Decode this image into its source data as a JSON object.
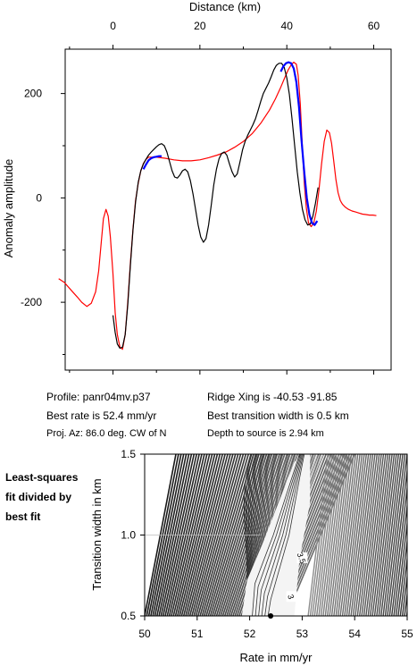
{
  "chart_data": [
    {
      "type": "line",
      "xlabel": "Distance (km)",
      "ylabel": "Anomaly amplitude",
      "xlim": [
        -11,
        64
      ],
      "ylim": [
        -330,
        285
      ],
      "x_ticks": [
        0,
        20,
        40,
        60
      ],
      "y_ticks": [
        -200,
        0,
        200
      ],
      "x_tick_labels": [
        "0",
        "20",
        "40",
        "60"
      ],
      "y_tick_labels": [
        "-200",
        "0",
        "200"
      ],
      "grid": false,
      "series": [
        {
          "color": "#ff0000",
          "x": [
            -12.5,
            -11.2,
            -9.5,
            -8.2,
            -7.2,
            -6,
            -5,
            -4,
            -3.3,
            -2.7,
            -2.2,
            -1.6,
            -1.1,
            -0.6,
            0,
            0.5,
            1,
            1.6,
            2.2,
            2.8,
            3.4,
            4,
            4.6,
            5.2,
            5.8,
            6.4,
            7,
            7.6,
            8.2,
            8.8,
            10,
            12,
            14,
            16,
            18,
            20,
            22,
            24,
            26,
            28,
            30,
            32,
            34,
            36,
            37.4,
            38.5,
            39.5,
            40.3,
            41,
            41.6,
            42.2,
            42.6,
            43.1,
            43.6,
            44,
            44.5,
            45,
            45.6,
            46.2,
            46.8,
            47.4,
            48,
            48.6,
            49.2,
            49.8,
            50.3,
            50.8,
            51.3,
            51.8,
            52.3,
            52.8,
            53.5,
            54.2,
            55,
            55.8,
            56.6,
            57.4,
            58.2,
            59,
            59.8,
            60.6
          ],
          "y": [
            -155,
            -162,
            -178,
            -190,
            -200,
            -208,
            -202,
            -180,
            -140,
            -85,
            -40,
            -22,
            -35,
            -75,
            -145,
            -220,
            -262,
            -286,
            -290,
            -262,
            -200,
            -125,
            -60,
            -5,
            28,
            52,
            66,
            74,
            78,
            78,
            78,
            76,
            73,
            71,
            71,
            73,
            77,
            82,
            88,
            97,
            108,
            123,
            143,
            168,
            190,
            210,
            230,
            245,
            255,
            260,
            256,
            235,
            180,
            95,
            30,
            -20,
            -48,
            -55,
            -48,
            -25,
            15,
            65,
            108,
            130,
            125,
            105,
            70,
            35,
            10,
            -5,
            -12,
            -18,
            -22,
            -25,
            -27,
            -29,
            -31,
            -32,
            -33,
            -33,
            -34
          ]
        },
        {
          "color": "#000000",
          "x": [
            0,
            0.5,
            1,
            1.6,
            2.2,
            2.8,
            3.4,
            4,
            4.6,
            5.2,
            5.8,
            6.4,
            7,
            7.6,
            8.2,
            8.8,
            9.4,
            10,
            10.6,
            11.2,
            11.8,
            12.4,
            13,
            13.6,
            14.2,
            14.8,
            15.4,
            16,
            16.6,
            17.2,
            17.8,
            18.4,
            19,
            19.6,
            20.2,
            20.8,
            21.4,
            22,
            22.6,
            23.2,
            23.8,
            24.4,
            25,
            25.6,
            26.2,
            26.8,
            27.4,
            28,
            28.6,
            29.2,
            29.8,
            30.4,
            31,
            31.6,
            32.2,
            32.8,
            33.4,
            34,
            34.6,
            35.2,
            35.8,
            36.4,
            37,
            37.6,
            38.2,
            38.8,
            39.4,
            40,
            40.6,
            41.2,
            41.8,
            42.4,
            43,
            43.6,
            44.2,
            44.8,
            45.4,
            46,
            46.6,
            47.2
          ],
          "y": [
            -225,
            -258,
            -280,
            -288,
            -286,
            -262,
            -205,
            -130,
            -62,
            -8,
            30,
            52,
            65,
            74,
            82,
            88,
            93,
            98,
            102,
            104,
            100,
            88,
            70,
            52,
            40,
            38,
            44,
            52,
            55,
            50,
            33,
            8,
            -22,
            -52,
            -75,
            -85,
            -78,
            -52,
            -15,
            25,
            55,
            75,
            85,
            88,
            82,
            65,
            50,
            40,
            46,
            68,
            92,
            108,
            120,
            130,
            140,
            152,
            168,
            185,
            200,
            210,
            220,
            232,
            245,
            254,
            258,
            258,
            250,
            230,
            198,
            152,
            100,
            50,
            10,
            -22,
            -42,
            -52,
            -50,
            -35,
            -10,
            20
          ],
          "stroke_width": 1.2
        },
        {
          "color": "#0000ff",
          "x": [
            7,
            7.6,
            8.2,
            8.8,
            9.4,
            10,
            10.6,
            11.2,
            38.6,
            39.2,
            39.8,
            40.4,
            41,
            41.6,
            42.2,
            42.8,
            43.4,
            44,
            44.6,
            45.2,
            45.8,
            46.4,
            47
          ],
          "y": [
            55,
            64,
            72,
            76,
            78,
            79,
            80,
            80,
            242,
            252,
            258,
            260,
            258,
            248,
            222,
            175,
            110,
            50,
            0,
            -32,
            -48,
            -52,
            -44
          ],
          "gap_after_index": 7
        }
      ]
    },
    {
      "type": "heatmap",
      "subtype": "contour",
      "xlabel": "Rate in mm/yr",
      "ylabel": "Transition width in km",
      "xlim": [
        50,
        55
      ],
      "ylim": [
        0.5,
        1.5
      ],
      "x_ticks": [
        50,
        51,
        52,
        53,
        54,
        55
      ],
      "y_ticks": [
        0.5,
        1.0,
        1.5
      ],
      "x_tick_labels": [
        "50",
        "51",
        "52",
        "53",
        "54",
        "55"
      ],
      "y_tick_labels": [
        "0.5",
        "1.0",
        "1.5"
      ],
      "best_fit_point": [
        52.4,
        0.5
      ],
      "contour_labels": [
        {
          "text": "3.5",
          "x": 53.0,
          "y": 0.86
        },
        {
          "text": "3",
          "x": 52.8,
          "y": 0.62
        }
      ]
    }
  ],
  "info": {
    "profile": "Profile: panr04mv.p37",
    "ridge_xing": "Ridge Xing is -40.53 -91.85",
    "best_rate": "Best rate is 52.4 mm/yr",
    "best_width": "Best transition width is 0.5 km",
    "proj_az": "Proj. Az: 86.0 deg. CW of N",
    "depth": "Depth to source is   2.94 km"
  },
  "side_note": [
    "Least-squares",
    "fit divided by",
    "best fit"
  ]
}
